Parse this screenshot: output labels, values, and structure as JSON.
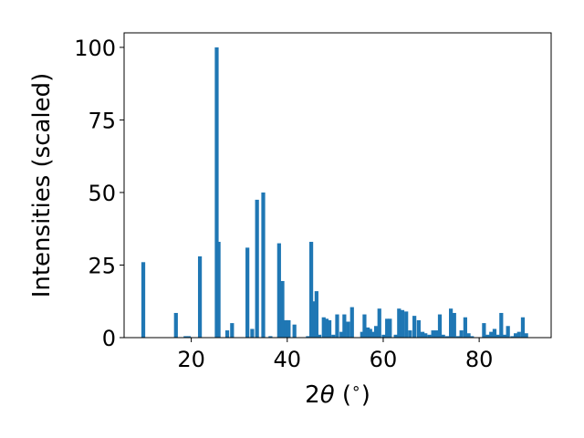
{
  "chart_data": {
    "type": "bar",
    "title": "",
    "xlabel_parts": {
      "pre": "2",
      "theta": "θ",
      "post": " (",
      "deg": "∘",
      "close": ")"
    },
    "ylabel": "Intensities (scaled)",
    "xlim": [
      6,
      95
    ],
    "ylim": [
      0,
      105
    ],
    "xticks": [
      20,
      40,
      60,
      80
    ],
    "yticks": [
      0,
      25,
      50,
      75,
      100
    ],
    "bar_color": "#1f77b4",
    "grid": false,
    "x": [
      10.0,
      16.8,
      18.8,
      19.5,
      21.8,
      25.3,
      25.7,
      27.5,
      28.5,
      31.7,
      32.7,
      33.7,
      35.0,
      36.5,
      38.3,
      39.0,
      39.7,
      40.3,
      41.5,
      44.3,
      45.0,
      45.7,
      46.1,
      46.7,
      47.6,
      48.2,
      48.8,
      49.6,
      50.4,
      51.3,
      51.9,
      52.7,
      53.5,
      55.6,
      56.1,
      56.8,
      57.3,
      57.9,
      58.5,
      59.2,
      60.1,
      60.8,
      61.4,
      62.6,
      63.3,
      64.0,
      64.8,
      65.6,
      66.5,
      67.4,
      68.2,
      68.8,
      69.6,
      70.4,
      71.1,
      71.8,
      72.5,
      73.3,
      74.1,
      74.8,
      75.6,
      76.3,
      77.1,
      77.8,
      78.5,
      81.0,
      81.8,
      82.5,
      83.2,
      83.9,
      84.6,
      85.3,
      86.0,
      86.9,
      87.6,
      88.3,
      89.1,
      89.8
    ],
    "values": [
      26,
      8.5,
      0.5,
      0.5,
      28,
      100,
      33,
      2.5,
      5,
      31,
      3,
      47.5,
      50,
      0.5,
      32.5,
      19.5,
      6,
      6,
      4.5,
      0.5,
      33,
      12.5,
      16,
      1,
      7,
      6.5,
      6,
      1,
      8,
      2,
      8,
      5.5,
      10.5,
      2,
      8,
      3.5,
      3,
      2,
      4,
      10,
      1,
      6.5,
      6.5,
      1,
      10,
      9.5,
      9,
      2.5,
      7.5,
      6,
      2,
      1.5,
      1,
      2.5,
      2.5,
      8,
      1,
      0.5,
      10,
      8.5,
      0.5,
      2.5,
      7,
      1.5,
      0.5,
      5,
      1,
      2,
      3,
      1,
      8.5,
      1,
      4,
      0.5,
      1.5,
      2,
      7,
      1.5
    ]
  }
}
